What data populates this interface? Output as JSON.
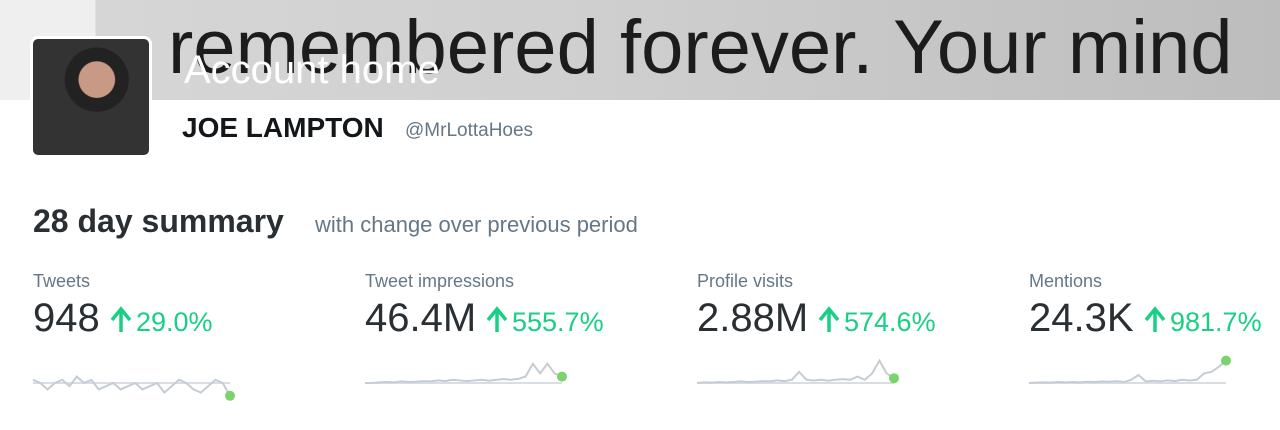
{
  "banner": {
    "text": "remembered forever. Your mind",
    "account_home": "Account home"
  },
  "profile": {
    "name": "JOE LAMPTON",
    "handle": "@MrLottaHoes"
  },
  "summary": {
    "title": "28 day summary",
    "subtitle": "with change over previous period"
  },
  "stats": [
    {
      "label": "Tweets",
      "value": "948",
      "change": "29.0%",
      "sparkline": [
        1,
        0,
        -2,
        0,
        1,
        -1,
        2,
        0,
        1,
        -2,
        -1,
        0,
        -2,
        -1,
        0,
        -2,
        -1,
        0,
        -3,
        -1,
        1,
        0,
        -2,
        -3,
        -1,
        1,
        0,
        -4
      ]
    },
    {
      "label": "Tweet impressions",
      "value": "46.4M",
      "change": "555.7%",
      "sparkline": [
        0,
        0,
        0.2,
        0.3,
        0.2,
        0.5,
        0.3,
        0.4,
        0.6,
        0.5,
        0.8,
        0.6,
        1,
        0.8,
        0.6,
        0.8,
        1,
        0.7,
        1,
        1.2,
        1,
        1.3,
        2,
        6,
        3,
        6,
        3,
        2
      ]
    },
    {
      "label": "Profile visits",
      "value": "2.88M",
      "change": "574.6%",
      "sparkline": [
        0,
        0.2,
        0.1,
        0.3,
        0.2,
        0.3,
        0.5,
        0.3,
        0.4,
        0.6,
        0.5,
        0.8,
        0.6,
        1,
        3.5,
        1,
        0.8,
        1,
        0.7,
        1,
        1.2,
        1,
        2,
        1,
        3,
        7,
        3,
        1.5
      ]
    },
    {
      "label": "Mentions",
      "value": "24.3K",
      "change": "981.7%",
      "sparkline": [
        0,
        0.1,
        0.2,
        0.1,
        0.3,
        0.2,
        0.3,
        0.2,
        0.4,
        0.3,
        0.5,
        0.4,
        0.6,
        0.3,
        1,
        2.5,
        0.5,
        0.7,
        0.5,
        0.8,
        0.6,
        1,
        0.8,
        1,
        3,
        3.5,
        5,
        7
      ]
    }
  ]
}
